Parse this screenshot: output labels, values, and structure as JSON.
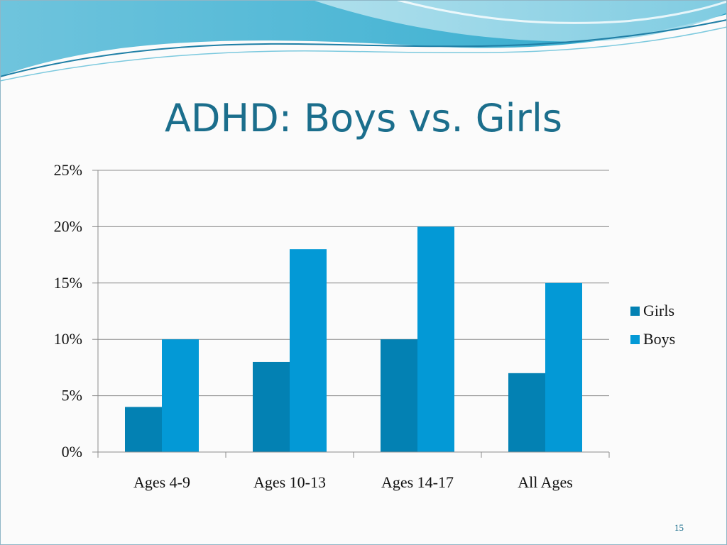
{
  "slide": {
    "title": "ADHD: Boys vs. Girls",
    "page_number": "15"
  },
  "colors": {
    "girls": "#0381b3",
    "boys": "#0399d6",
    "title": "#1b6e8c",
    "grid": "#8c8c8c"
  },
  "chart_data": {
    "type": "bar",
    "title": "",
    "xlabel": "",
    "ylabel": "",
    "categories": [
      "Ages 4-9",
      "Ages 10-13",
      "Ages 14-17",
      "All Ages"
    ],
    "series": [
      {
        "name": "Girls",
        "values": [
          4,
          8,
          10,
          7
        ]
      },
      {
        "name": "Boys",
        "values": [
          10,
          18,
          20,
          15
        ]
      }
    ],
    "ylim": [
      0,
      25
    ],
    "yticks": [
      0,
      5,
      10,
      15,
      20,
      25
    ],
    "ytick_labels": [
      "0%",
      "5%",
      "10%",
      "15%",
      "20%",
      "25%"
    ],
    "grid": true,
    "legend": "right"
  }
}
